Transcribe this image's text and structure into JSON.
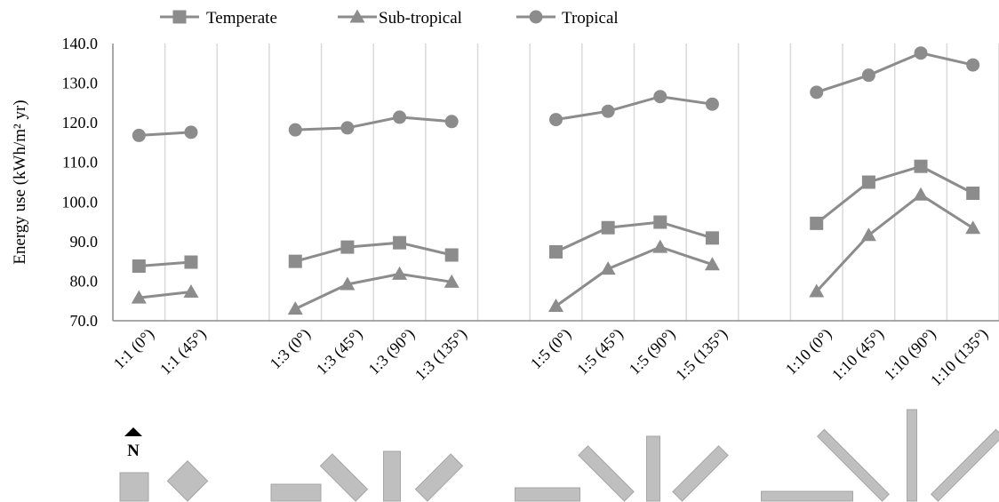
{
  "chart_data": {
    "type": "line",
    "title": "",
    "xlabel": "",
    "ylabel": "Energy use (kWh/m² yr)",
    "ylim": [
      70,
      140
    ],
    "yticks": [
      "70.0",
      "80.0",
      "90.0",
      "100.0",
      "110.0",
      "120.0",
      "130.0",
      "140.0"
    ],
    "grid": "vertical",
    "legend_position": "top",
    "categories": [
      "1:1 (0°)",
      "1:1 (45°)",
      "",
      "1:3 (0°)",
      "1:3 (45°)",
      "1:3 (90°)",
      "1:3 (135°)",
      "",
      "1:5 (0°)",
      "1:5 (45°)",
      "1:5 (90°)",
      "1:5 (135°)",
      "",
      "1:10 (0°)",
      "1:10 (45°)",
      "1:10 (90°)",
      "1:10 (135°)"
    ],
    "series": [
      {
        "name": "Temperate",
        "marker": "square",
        "color": "#8c8c8c",
        "values": [
          83.8,
          84.8,
          null,
          85.0,
          88.6,
          89.7,
          86.6,
          null,
          87.4,
          93.5,
          94.9,
          90.9,
          null,
          94.6,
          105.0,
          109.0,
          102.2
        ]
      },
      {
        "name": "Sub-tropical",
        "marker": "triangle",
        "color": "#8c8c8c",
        "values": [
          75.8,
          77.3,
          null,
          73.0,
          79.2,
          81.8,
          79.8,
          null,
          73.7,
          83.1,
          88.6,
          84.2,
          null,
          77.4,
          91.6,
          101.8,
          93.4
        ]
      },
      {
        "name": "Tropical",
        "marker": "circle",
        "color": "#8c8c8c",
        "values": [
          116.8,
          117.6,
          null,
          118.2,
          118.7,
          121.4,
          120.3,
          null,
          120.8,
          122.9,
          126.6,
          124.7,
          null,
          127.7,
          132.0,
          137.6,
          134.6
        ]
      }
    ],
    "orientation_symbol": "N",
    "footprints": [
      {
        "ratio": "1:1",
        "angle": 0
      },
      {
        "ratio": "1:1",
        "angle": 45
      },
      {
        "ratio": "1:3",
        "angle": 0
      },
      {
        "ratio": "1:3",
        "angle": 45
      },
      {
        "ratio": "1:3",
        "angle": 90
      },
      {
        "ratio": "1:3",
        "angle": 135
      },
      {
        "ratio": "1:5",
        "angle": 0
      },
      {
        "ratio": "1:5",
        "angle": 45
      },
      {
        "ratio": "1:5",
        "angle": 90
      },
      {
        "ratio": "1:5",
        "angle": 135
      },
      {
        "ratio": "1:10",
        "angle": 0
      },
      {
        "ratio": "1:10",
        "angle": 45
      },
      {
        "ratio": "1:10",
        "angle": 90
      },
      {
        "ratio": "1:10",
        "angle": 135
      }
    ],
    "colors": {
      "series": "#8c8c8c",
      "axis": "#8c8c8c",
      "grid": "#d9d9d9",
      "footprint": "#bfbfbf",
      "footprint_stroke": "#a6a6a6"
    }
  }
}
